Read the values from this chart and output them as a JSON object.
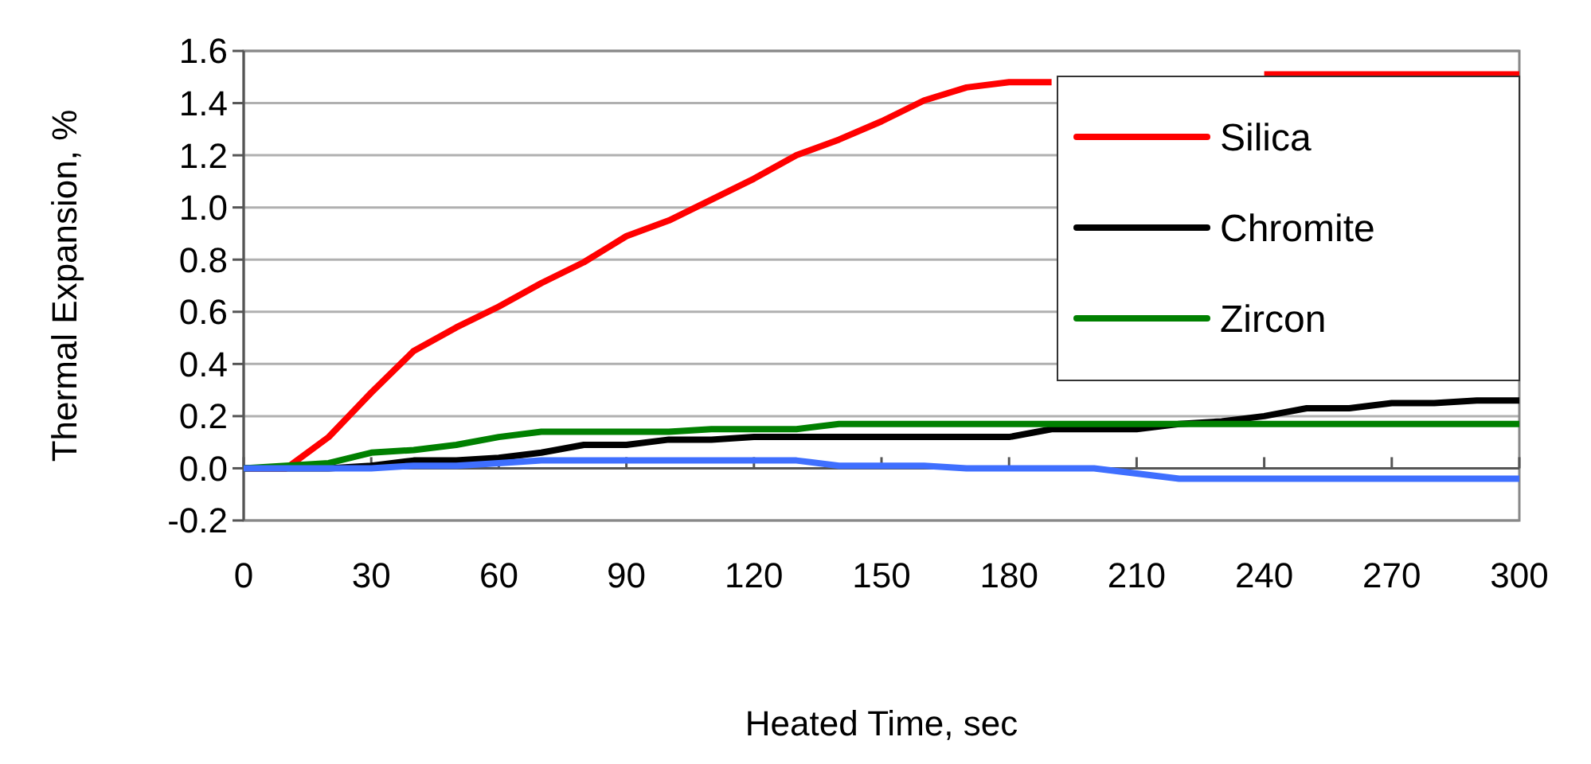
{
  "chart_data": {
    "type": "line",
    "xlabel": "Heated Time, sec",
    "ylabel": "Thermal Expansion, %",
    "x": [
      0,
      10,
      20,
      30,
      40,
      50,
      60,
      70,
      80,
      90,
      100,
      110,
      120,
      130,
      140,
      150,
      160,
      170,
      180,
      190,
      200,
      210,
      220,
      230,
      240,
      250,
      260,
      270,
      280,
      290,
      300
    ],
    "series": [
      {
        "name": "Silica",
        "color": "#ff0000",
        "values": [
          0,
          0,
          0.12,
          0.29,
          0.45,
          0.54,
          0.62,
          0.71,
          0.79,
          0.89,
          0.95,
          1.03,
          1.11,
          1.2,
          1.26,
          1.33,
          1.41,
          1.46,
          1.48,
          1.48,
          null,
          null,
          null,
          null,
          1.51,
          1.51,
          1.51,
          1.51,
          1.51,
          1.51,
          1.51
        ]
      },
      {
        "name": "Chromite",
        "color": "#000000",
        "values": [
          0,
          0,
          0,
          0.01,
          0.03,
          0.03,
          0.04,
          0.06,
          0.09,
          0.09,
          0.11,
          0.11,
          0.12,
          0.12,
          0.12,
          0.12,
          0.12,
          0.12,
          0.12,
          0.15,
          0.15,
          0.15,
          0.17,
          0.18,
          0.2,
          0.23,
          0.23,
          0.25,
          0.25,
          0.26,
          0.26
        ]
      },
      {
        "name": "Zircon",
        "color": "#008000",
        "values": [
          0,
          0.01,
          0.02,
          0.06,
          0.07,
          0.09,
          0.12,
          0.14,
          0.14,
          0.14,
          0.14,
          0.15,
          0.15,
          0.15,
          0.17,
          0.17,
          0.17,
          0.17,
          0.17,
          0.17,
          0.17,
          0.17,
          0.17,
          0.17,
          0.17,
          0.17,
          0.17,
          0.17,
          0.17,
          0.17,
          0.17
        ]
      },
      {
        "color": "#3f6fff",
        "values": [
          0,
          0,
          0,
          0,
          0.01,
          0.01,
          0.02,
          0.03,
          0.03,
          0.03,
          0.03,
          0.03,
          0.03,
          0.03,
          0.01,
          0.01,
          0.01,
          0,
          0,
          0,
          0,
          -0.02,
          -0.04,
          -0.04,
          -0.04,
          -0.04,
          -0.04,
          -0.04,
          -0.04,
          -0.04,
          -0.04
        ]
      }
    ],
    "xlim": [
      0,
      300
    ],
    "xticks": [
      0,
      30,
      60,
      90,
      120,
      150,
      180,
      210,
      240,
      270,
      300
    ],
    "ylim": [
      -0.2,
      1.6
    ],
    "yticks": [
      {
        "value": -0.2,
        "label": "-0.2"
      },
      {
        "value": 0,
        "label": "0.0"
      },
      {
        "value": 0.2,
        "label": "0.2"
      },
      {
        "value": 0.4,
        "label": "0.4"
      },
      {
        "value": 0.6,
        "label": "0.6"
      },
      {
        "value": 0.8,
        "label": "0.8"
      },
      {
        "value": 1,
        "label": "1.0"
      },
      {
        "value": 1.2,
        "label": "1.2"
      },
      {
        "value": 1.4,
        "label": "1.4"
      },
      {
        "value": 1.6,
        "label": "1.6"
      }
    ],
    "grid": "y",
    "legend": "top right",
    "marker": "none",
    "line_style": "solid"
  }
}
